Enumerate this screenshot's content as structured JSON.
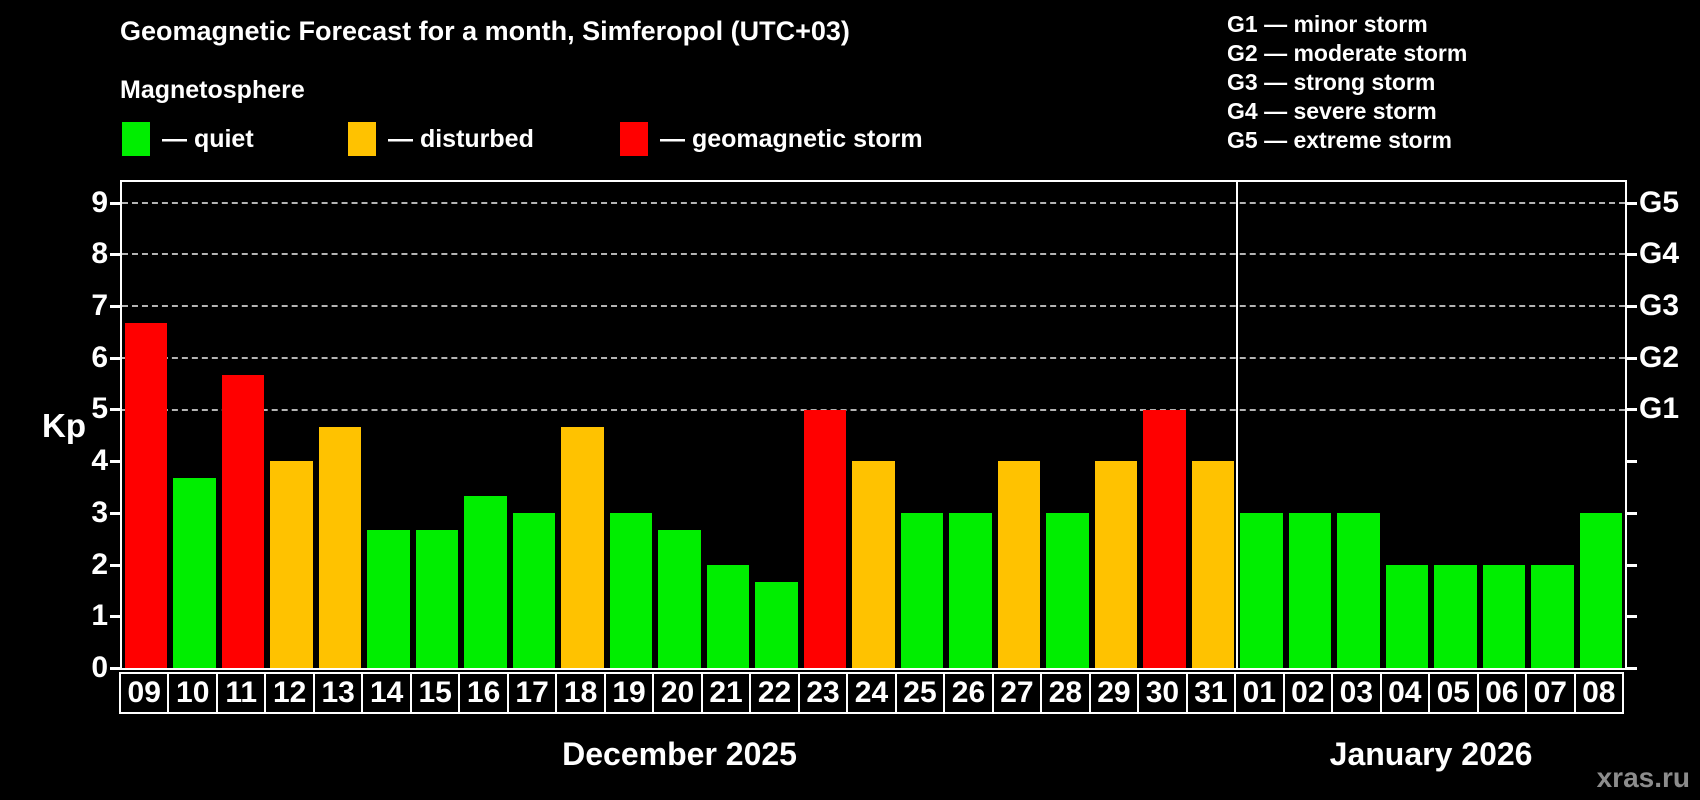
{
  "title": "Geomagnetic Forecast for a month, Simferopol (UTC+03)",
  "subtitle": "Magnetosphere",
  "legend": {
    "items": [
      {
        "label": "— quiet",
        "status": "quiet"
      },
      {
        "label": "— disturbed",
        "status": "disturbed"
      },
      {
        "label": "— geomagnetic storm",
        "status": "storm"
      }
    ]
  },
  "g_legend": [
    "G1 — minor storm",
    "G2 — moderate storm",
    "G3 — strong storm",
    "G4 — severe storm",
    "G5 — extreme storm"
  ],
  "colors": {
    "quiet": "#00ee00",
    "disturbed": "#ffc200",
    "storm": "#ff0000",
    "axis": "#ffffff",
    "gridline": "#b4b4b4",
    "watermark_text": "#8c8c8c"
  },
  "chart_data": {
    "type": "bar",
    "title": "Geomagnetic Forecast for a month, Simferopol (UTC+03)",
    "xlabel": "",
    "ylabel": "Kp",
    "ylim": [
      0,
      9.4
    ],
    "yticks": [
      0,
      1,
      2,
      3,
      4,
      5,
      6,
      7,
      8,
      9
    ],
    "gridlines_at": [
      5,
      6,
      7,
      8,
      9
    ],
    "grid": "dashed, horizontal, only at Kp 5-9",
    "right_axis_labels": [
      {
        "label": "G1",
        "value": 5
      },
      {
        "label": "G2",
        "value": 6
      },
      {
        "label": "G3",
        "value": 7
      },
      {
        "label": "G4",
        "value": 8
      },
      {
        "label": "G5",
        "value": 9
      }
    ],
    "groups": [
      {
        "label": "December 2025",
        "days": [
          "09",
          "10",
          "11",
          "12",
          "13",
          "14",
          "15",
          "16",
          "17",
          "18",
          "19",
          "20",
          "21",
          "22",
          "23",
          "24",
          "25",
          "26",
          "27",
          "28",
          "29",
          "30",
          "31"
        ],
        "values": [
          6.67,
          3.67,
          5.67,
          4.0,
          4.67,
          2.67,
          2.67,
          3.33,
          3.0,
          4.67,
          3.0,
          2.67,
          2.0,
          1.67,
          5.0,
          4.0,
          3.0,
          3.0,
          4.0,
          3.0,
          4.0,
          5.0,
          4.0
        ],
        "statuses": [
          "storm",
          "quiet",
          "storm",
          "disturbed",
          "disturbed",
          "quiet",
          "quiet",
          "quiet",
          "quiet",
          "disturbed",
          "quiet",
          "quiet",
          "quiet",
          "quiet",
          "storm",
          "disturbed",
          "quiet",
          "quiet",
          "disturbed",
          "quiet",
          "disturbed",
          "storm",
          "disturbed"
        ]
      },
      {
        "label": "January 2026",
        "days": [
          "01",
          "02",
          "03",
          "04",
          "05",
          "06",
          "07",
          "08"
        ],
        "values": [
          3.0,
          3.0,
          3.0,
          2.0,
          2.0,
          2.0,
          2.0,
          3.0
        ],
        "statuses": [
          "quiet",
          "quiet",
          "quiet",
          "quiet",
          "quiet",
          "quiet",
          "quiet",
          "quiet"
        ]
      }
    ]
  },
  "watermark": "xras.ru"
}
